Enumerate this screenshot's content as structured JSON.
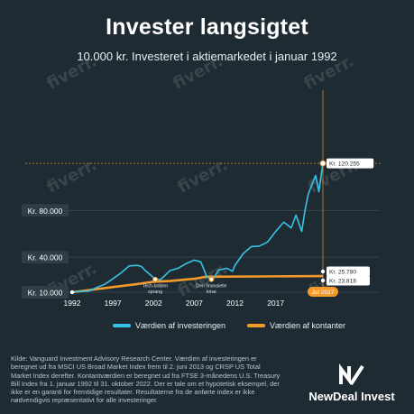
{
  "title": "Invester langsigtet",
  "subtitle": "10.000 kr. Investeret i aktiemarkedet i januar 1992",
  "watermark": "fiverr.",
  "colors": {
    "background": "#1f2b33",
    "investment": "#36c3e6",
    "cash": "#f39a2b",
    "guide": "#d98b3a"
  },
  "chart_data": {
    "type": "line",
    "title": "Invester langsigtet",
    "xlabel": "",
    "ylabel": "",
    "x_ticks": [
      "1992",
      "1997",
      "2002",
      "2007",
      "2012",
      "2017"
    ],
    "y_ticks": [
      "Kr. 10.000",
      "Kr. 40.000",
      "Kr. 80.000"
    ],
    "y_tick_values": [
      10000,
      40000,
      80000
    ],
    "xlim": [
      1992,
      2022.8
    ],
    "ylim": [
      10000,
      125000
    ],
    "grid": true,
    "legend_position": "bottom",
    "series": [
      {
        "name": "Værdien af investeringen",
        "x": [
          1992,
          1993,
          1994,
          1995,
          1996,
          1997,
          1998,
          1999,
          2000,
          2000.5,
          2001,
          2002,
          2002.8,
          2003.5,
          2004,
          2005,
          2006,
          2007,
          2007.8,
          2008.5,
          2009.2,
          2010,
          2011,
          2011.7,
          2012,
          2013,
          2014,
          2015,
          2016,
          2017,
          2018,
          2018.9,
          2019.5,
          2020.2,
          2020.6,
          2021,
          2021.9,
          2022.3,
          2022.8
        ],
        "y": [
          10000,
          10800,
          10900,
          14000,
          16800,
          21500,
          26500,
          32500,
          33000,
          32000,
          28500,
          22500,
          20500,
          25000,
          28500,
          30500,
          34500,
          37500,
          36000,
          24000,
          20000,
          29000,
          30500,
          28000,
          33000,
          43000,
          49000,
          49500,
          53000,
          62000,
          70000,
          65000,
          76000,
          62000,
          80000,
          94000,
          110000,
          96000,
          120255
        ]
      },
      {
        "name": "Værdien af kontanter",
        "x": [
          1992,
          1996,
          2000,
          2001,
          2002,
          2004,
          2007,
          2008.5,
          2015,
          2017,
          2022.8
        ],
        "y": [
          10000,
          13500,
          17000,
          18000,
          19000,
          19600,
          21500,
          23300,
          23500,
          23600,
          23816
        ]
      }
    ],
    "annotations": [
      {
        "label": "Tech-boblen sprang",
        "x": 2002.2,
        "y": 21000
      },
      {
        "label": "Den finansielle krise",
        "x": 2009.1,
        "y": 21000
      }
    ],
    "end_labels": [
      "Kr. 120.255",
      "Kr. 25.780",
      "Kr. 23.816"
    ],
    "x_marker": "Jul 2017"
  },
  "legend": {
    "investment": "Værdien af investeringen",
    "cash": "Værdien af kontanter"
  },
  "source_text": "Kilde: Vanguard Investment Advisory Research Center. Værdien af investeringen er beregnet ud fra MSCI US Broad Market Index frem til 2. juni 2013 og CRSP US Total Market Index derefter. Kontantværdien er beregnet ud fra FTSE 3-månedens U.S. Treasury Bill Index fra 1. januar 1992 til 31. oktober 2022. Der er tale om et hypotetisk eksempel, der ikke er en garanti for fremtidige resultater. Resultaterne fra de anførte index er ikke nødvendigvis repræsentativt for alle investeringer.",
  "brand": {
    "name": "NewDeal Invest",
    "logo_icon": "newdeal-logo-icon"
  }
}
